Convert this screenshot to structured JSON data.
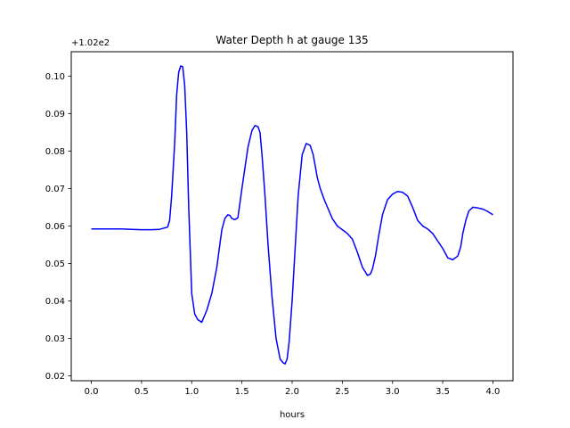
{
  "chart_data": {
    "type": "line",
    "title": "Water Depth h at gauge 135",
    "xlabel": "hours",
    "ylabel": "",
    "offset_text": "+1.02e2",
    "xlim": [
      -0.2,
      4.2
    ],
    "ylim": [
      0.0187,
      0.1065
    ],
    "xticks": [
      0.0,
      0.5,
      1.0,
      1.5,
      2.0,
      2.5,
      3.0,
      3.5,
      4.0
    ],
    "xtick_labels": [
      "0.0",
      "0.5",
      "1.0",
      "1.5",
      "2.0",
      "2.5",
      "3.0",
      "3.5",
      "4.0"
    ],
    "yticks": [
      0.02,
      0.03,
      0.04,
      0.05,
      0.06,
      0.07,
      0.08,
      0.09,
      0.1
    ],
    "ytick_labels": [
      "0.02",
      "0.03",
      "0.04",
      "0.05",
      "0.06",
      "0.07",
      "0.08",
      "0.09",
      "0.10"
    ],
    "grid": false,
    "series": [
      {
        "color": "#0000ff",
        "x": [
          0.0,
          0.1,
          0.2,
          0.3,
          0.4,
          0.5,
          0.6,
          0.68,
          0.72,
          0.76,
          0.78,
          0.8,
          0.83,
          0.85,
          0.87,
          0.89,
          0.91,
          0.93,
          0.95,
          0.97,
          1.0,
          1.03,
          1.06,
          1.1,
          1.15,
          1.2,
          1.25,
          1.3,
          1.33,
          1.36,
          1.38,
          1.4,
          1.43,
          1.46,
          1.5,
          1.53,
          1.56,
          1.6,
          1.63,
          1.66,
          1.68,
          1.7,
          1.73,
          1.76,
          1.8,
          1.84,
          1.88,
          1.91,
          1.93,
          1.95,
          1.97,
          2.0,
          2.03,
          2.06,
          2.1,
          2.14,
          2.18,
          2.21,
          2.23,
          2.25,
          2.28,
          2.32,
          2.36,
          2.4,
          2.45,
          2.5,
          2.55,
          2.6,
          2.65,
          2.7,
          2.75,
          2.78,
          2.8,
          2.83,
          2.86,
          2.9,
          2.95,
          3.0,
          3.05,
          3.1,
          3.15,
          3.2,
          3.25,
          3.3,
          3.35,
          3.4,
          3.45,
          3.5,
          3.55,
          3.6,
          3.65,
          3.68,
          3.7,
          3.73,
          3.76,
          3.8,
          3.85,
          3.9,
          3.94,
          3.97,
          4.0
        ],
        "y": [
          0.0592,
          0.0592,
          0.0592,
          0.0592,
          0.0591,
          0.059,
          0.059,
          0.0591,
          0.0594,
          0.0597,
          0.0615,
          0.068,
          0.082,
          0.095,
          0.101,
          0.1027,
          0.1025,
          0.0975,
          0.085,
          0.065,
          0.042,
          0.0365,
          0.035,
          0.0343,
          0.0375,
          0.042,
          0.049,
          0.059,
          0.062,
          0.063,
          0.0628,
          0.062,
          0.0617,
          0.0622,
          0.07,
          0.0755,
          0.081,
          0.0855,
          0.0868,
          0.0865,
          0.085,
          0.079,
          0.068,
          0.055,
          0.041,
          0.03,
          0.0245,
          0.0235,
          0.0232,
          0.0245,
          0.029,
          0.04,
          0.054,
          0.068,
          0.079,
          0.082,
          0.0815,
          0.079,
          0.076,
          0.073,
          0.07,
          0.067,
          0.0645,
          0.062,
          0.06,
          0.059,
          0.058,
          0.0565,
          0.053,
          0.049,
          0.0468,
          0.0472,
          0.0485,
          0.052,
          0.057,
          0.063,
          0.067,
          0.0685,
          0.0692,
          0.069,
          0.068,
          0.065,
          0.0615,
          0.06,
          0.0592,
          0.058,
          0.056,
          0.054,
          0.0515,
          0.051,
          0.052,
          0.0545,
          0.058,
          0.0615,
          0.064,
          0.065,
          0.0648,
          0.0645,
          0.064,
          0.0635,
          0.063
        ]
      }
    ]
  }
}
